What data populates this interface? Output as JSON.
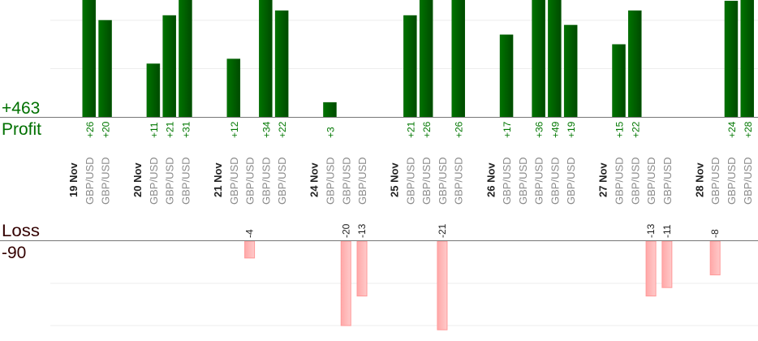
{
  "chart_data": {
    "type": "bar",
    "profit_panel": {
      "label": "Profit",
      "total": "+463",
      "ylim": [
        0,
        24
      ],
      "grid_values": [
        10,
        20
      ],
      "color": "#006600",
      "label_color": "#007700"
    },
    "loss_panel": {
      "label": "Loss",
      "total": "-90",
      "ylim": [
        -21,
        0
      ],
      "grid_values": [
        -10,
        -20
      ],
      "color": "#ffb3b3",
      "border_color": "#ff9999",
      "label_color": "#330000"
    },
    "days": [
      {
        "date": "19 Nov",
        "trades": [
          {
            "pair": "GBP/USD",
            "value": 26
          },
          {
            "pair": "GBP/USD",
            "value": 20
          }
        ]
      },
      {
        "date": "20 Nov",
        "trades": [
          {
            "pair": "GBP/USD",
            "value": 11
          },
          {
            "pair": "GBP/USD",
            "value": 21
          },
          {
            "pair": "GBP/USD",
            "value": 31
          }
        ]
      },
      {
        "date": "21 Nov",
        "trades": [
          {
            "pair": "GBP/USD",
            "value": 12
          },
          {
            "pair": "GBP/USD",
            "value": -4
          },
          {
            "pair": "GBP/USD",
            "value": 34
          },
          {
            "pair": "GBP/USD",
            "value": 22
          }
        ]
      },
      {
        "date": "24 Nov",
        "trades": [
          {
            "pair": "GBP/USD",
            "value": 3
          },
          {
            "pair": "GBP/USD",
            "value": -20
          },
          {
            "pair": "GBP/USD",
            "value": -13
          }
        ]
      },
      {
        "date": "25 Nov",
        "trades": [
          {
            "pair": "GBP/USD",
            "value": 21
          },
          {
            "pair": "GBP/USD",
            "value": 26
          },
          {
            "pair": "GBP/USD",
            "value": -21
          },
          {
            "pair": "GBP/USD",
            "value": 26
          }
        ]
      },
      {
        "date": "26 Nov",
        "trades": [
          {
            "pair": "GBP/USD",
            "value": 17
          },
          {
            "pair": "GBP/USD",
            "value": null
          },
          {
            "pair": "GBP/USD",
            "value": 36
          },
          {
            "pair": "GBP/USD",
            "value": 49
          },
          {
            "pair": "GBP/USD",
            "value": 19
          }
        ]
      },
      {
        "date": "27 Nov",
        "trades": [
          {
            "pair": "GBP/USD",
            "value": 15
          },
          {
            "pair": "GBP/USD",
            "value": 22
          },
          {
            "pair": "GBP/USD",
            "value": -13
          },
          {
            "pair": "GBP/USD",
            "value": -11
          }
        ]
      },
      {
        "date": "28 Nov",
        "trades": [
          {
            "pair": "GBP/USD",
            "value": -8
          },
          {
            "pair": "GBP/USD",
            "value": 24
          },
          {
            "pair": "GBP/USD",
            "value": 28
          }
        ]
      }
    ]
  }
}
